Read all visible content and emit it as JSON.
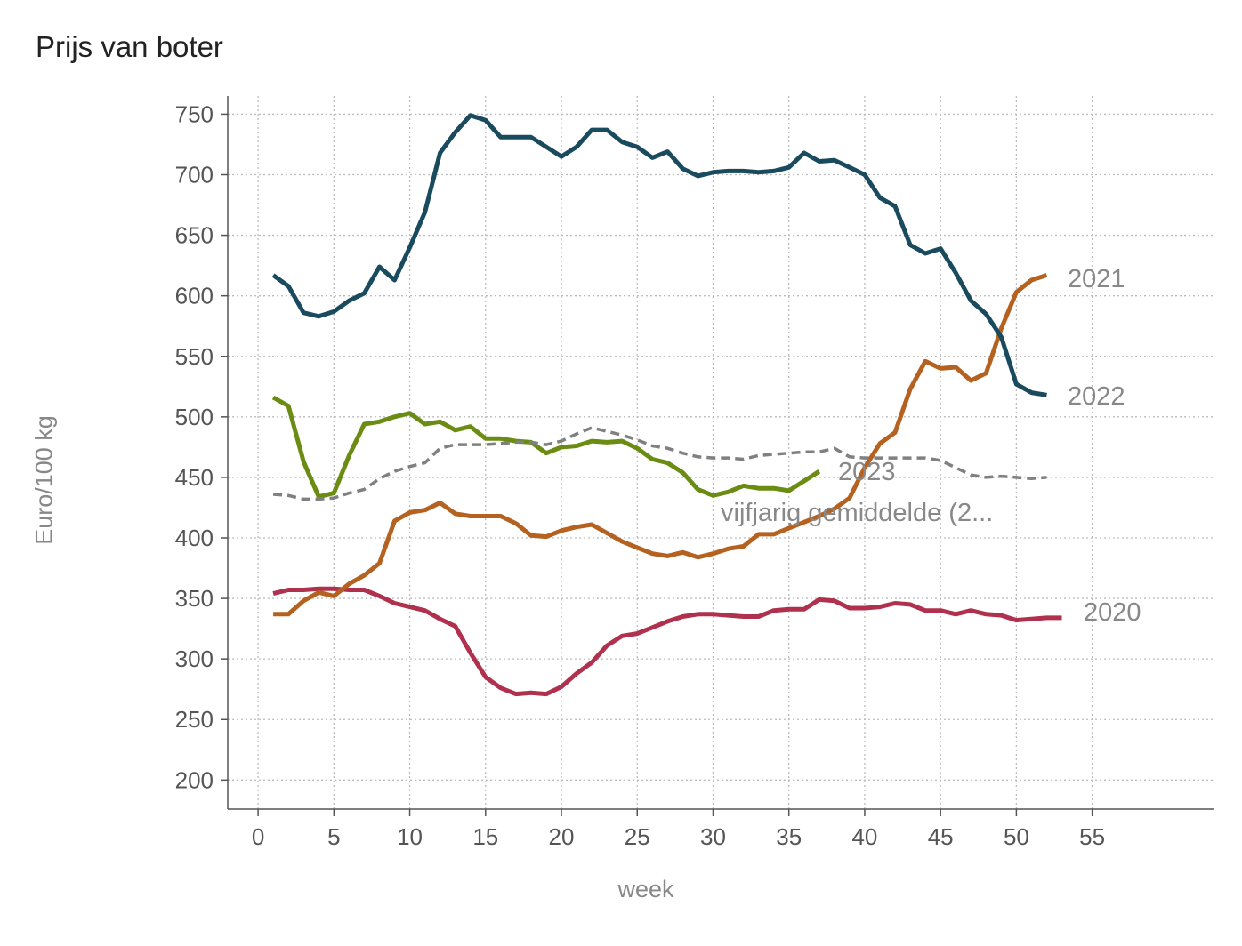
{
  "chart_data": {
    "type": "line",
    "title": "Prijs van boter",
    "xlabel": "week",
    "ylabel": "Euro/100 kg",
    "xlim": [
      -2,
      63
    ],
    "ylim": [
      176,
      765
    ],
    "xticks": [
      0,
      5,
      10,
      15,
      20,
      25,
      30,
      35,
      40,
      45,
      50,
      55
    ],
    "yticks": [
      200,
      250,
      300,
      350,
      400,
      450,
      500,
      550,
      600,
      650,
      700,
      750
    ],
    "grid": true,
    "series": [
      {
        "name": "2020",
        "color": "#b0314e",
        "dashed": false,
        "x": [
          1,
          2,
          3,
          4,
          5,
          6,
          7,
          8,
          9,
          10,
          11,
          12,
          13,
          14,
          15,
          16,
          17,
          18,
          19,
          20,
          21,
          22,
          23,
          24,
          25,
          26,
          27,
          28,
          29,
          30,
          31,
          32,
          33,
          34,
          35,
          36,
          37,
          38,
          39,
          40,
          41,
          42,
          43,
          44,
          45,
          46,
          47,
          48,
          49,
          50,
          51,
          52,
          53
        ],
        "values": [
          354,
          357,
          357,
          358,
          358,
          357,
          357,
          352,
          346,
          343,
          340,
          333,
          327,
          305,
          285,
          276,
          271,
          272,
          271,
          277,
          288,
          297,
          311,
          319,
          321,
          326,
          331,
          335,
          337,
          337,
          336,
          335,
          335,
          340,
          341,
          341,
          349,
          348,
          342,
          342,
          343,
          346,
          345,
          340,
          340,
          337,
          340,
          337,
          336,
          332,
          333,
          334,
          334
        ]
      },
      {
        "name": "2021",
        "color": "#b5611f",
        "dashed": false,
        "x": [
          1,
          2,
          3,
          4,
          5,
          6,
          7,
          8,
          9,
          10,
          11,
          12,
          13,
          14,
          15,
          16,
          17,
          18,
          19,
          20,
          21,
          22,
          23,
          24,
          25,
          26,
          27,
          28,
          29,
          30,
          31,
          32,
          33,
          34,
          35,
          36,
          37,
          38,
          39,
          40,
          41,
          42,
          43,
          44,
          45,
          46,
          47,
          48,
          49,
          50,
          51,
          52
        ],
        "values": [
          337,
          337,
          348,
          355,
          352,
          362,
          369,
          379,
          414,
          421,
          423,
          429,
          420,
          418,
          418,
          418,
          412,
          402,
          401,
          406,
          409,
          411,
          404,
          397,
          392,
          387,
          385,
          388,
          384,
          387,
          391,
          393,
          403,
          403,
          408,
          413,
          418,
          424,
          433,
          458,
          478,
          487,
          523,
          546,
          540,
          541,
          530,
          536,
          573,
          603,
          613,
          617
        ]
      },
      {
        "name": "2022",
        "color": "#1a4a5e",
        "dashed": false,
        "x": [
          1,
          2,
          3,
          4,
          5,
          6,
          7,
          8,
          9,
          10,
          11,
          12,
          13,
          14,
          15,
          16,
          17,
          18,
          19,
          20,
          21,
          22,
          23,
          24,
          25,
          26,
          27,
          28,
          29,
          30,
          31,
          32,
          33,
          34,
          35,
          36,
          37,
          38,
          39,
          40,
          41,
          42,
          43,
          44,
          45,
          46,
          47,
          48,
          49,
          50,
          51,
          52
        ],
        "values": [
          617,
          608,
          586,
          583,
          587,
          596,
          602,
          624,
          613,
          640,
          669,
          718,
          735,
          749,
          745,
          731,
          731,
          731,
          723,
          715,
          723,
          737,
          737,
          727,
          723,
          714,
          719,
          705,
          699,
          702,
          703,
          703,
          702,
          703,
          706,
          718,
          711,
          712,
          706,
          700,
          681,
          674,
          642,
          635,
          639,
          619,
          596,
          585,
          566,
          527,
          520,
          518
        ]
      },
      {
        "name": "2023",
        "color": "#6b8c12",
        "dashed": false,
        "x": [
          1,
          2,
          3,
          4,
          5,
          6,
          7,
          8,
          9,
          10,
          11,
          12,
          13,
          14,
          15,
          16,
          17,
          18,
          19,
          20,
          21,
          22,
          23,
          24,
          25,
          26,
          27,
          28,
          29,
          30,
          31,
          32,
          33,
          34,
          35,
          36,
          37
        ],
        "values": [
          516,
          509,
          463,
          434,
          437,
          468,
          494,
          496,
          500,
          503,
          494,
          496,
          489,
          492,
          482,
          482,
          480,
          479,
          470,
          475,
          476,
          480,
          479,
          480,
          474,
          465,
          462,
          454,
          440,
          435,
          438,
          443,
          441,
          441,
          439,
          447,
          455
        ]
      },
      {
        "name": "vijfjarig gemiddelde (2...",
        "color": "#808080",
        "dashed": true,
        "x": [
          1,
          2,
          3,
          4,
          5,
          6,
          7,
          8,
          9,
          10,
          11,
          12,
          13,
          14,
          15,
          16,
          17,
          18,
          19,
          20,
          21,
          22,
          23,
          24,
          25,
          26,
          27,
          28,
          29,
          30,
          31,
          32,
          33,
          34,
          35,
          36,
          37,
          38,
          39,
          40,
          41,
          42,
          43,
          44,
          45,
          46,
          47,
          48,
          49,
          50,
          51,
          52
        ],
        "values": [
          436,
          435,
          432,
          432,
          433,
          437,
          440,
          449,
          455,
          459,
          462,
          474,
          477,
          477,
          477,
          478,
          479,
          479,
          477,
          480,
          486,
          491,
          488,
          485,
          481,
          476,
          474,
          470,
          467,
          466,
          466,
          465,
          468,
          469,
          470,
          471,
          471,
          474,
          467,
          466,
          466,
          466,
          466,
          466,
          464,
          458,
          452,
          450,
          451,
          450,
          449,
          450
        ]
      }
    ]
  },
  "labels": {
    "s2020": "2020",
    "s2021": "2021",
    "s2022": "2022",
    "s2023": "2023",
    "avg": "vijfjarig gemiddelde (2..."
  }
}
